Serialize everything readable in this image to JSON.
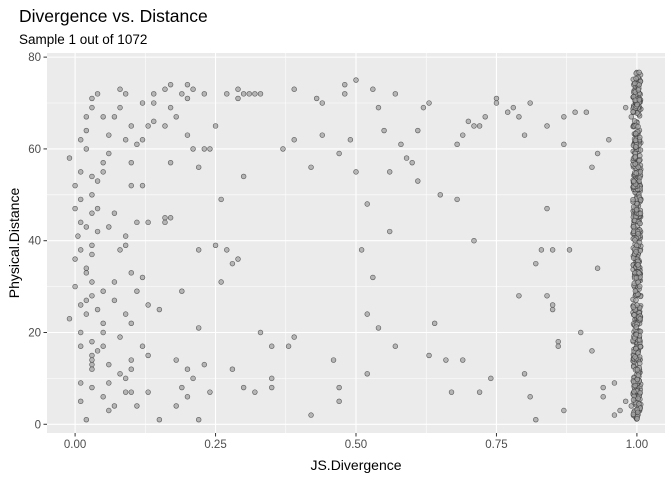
{
  "chart_data": {
    "type": "scatter",
    "title": "Divergence vs. Distance",
    "subtitle": "Sample 1 out of 1072",
    "xlabel": "JS.Divergence",
    "ylabel": "Physical.Distance",
    "xlim": [
      -0.05,
      1.05
    ],
    "ylim": [
      -1.9,
      80.9
    ],
    "xticks": [
      0,
      0.25,
      0.5,
      0.75,
      1
    ],
    "xtick_labels": [
      "0.00",
      "0.25",
      "0.50",
      "0.75",
      "1.00"
    ],
    "yticks": [
      0,
      20,
      40,
      60,
      80
    ],
    "ytick_labels": [
      "0",
      "20",
      "40",
      "60",
      "80"
    ],
    "grid": true,
    "point_color": "#333333",
    "point_fill": "#a3a3a3",
    "panel_background": "#ebebeb",
    "gridline_color": "#ffffff",
    "cluster_note": "About 600 points are stacked at JS.Divergence = 1.00 across the full distance range 1 to 77.",
    "points": [
      [
        -0.01,
        58
      ],
      [
        -0.01,
        23
      ],
      [
        0.0,
        52
      ],
      [
        0.0,
        47
      ],
      [
        0.0,
        36
      ],
      [
        0.0,
        30
      ],
      [
        0.01,
        62
      ],
      [
        0.01,
        55
      ],
      [
        0.01,
        49
      ],
      [
        0.01,
        44
      ],
      [
        0.005,
        41
      ],
      [
        0.01,
        38
      ],
      [
        0.01,
        26
      ],
      [
        0.01,
        9
      ],
      [
        0.01,
        5
      ],
      [
        0.01,
        17
      ],
      [
        0.01,
        20
      ],
      [
        0.02,
        67
      ],
      [
        0.02,
        64
      ],
      [
        0.02,
        60
      ],
      [
        0.02,
        43
      ],
      [
        0.02,
        34
      ],
      [
        0.02,
        33
      ],
      [
        0.02,
        27
      ],
      [
        0.02,
        24
      ],
      [
        0.02,
        1
      ],
      [
        0.03,
        71
      ],
      [
        0.03,
        69
      ],
      [
        0.03,
        54
      ],
      [
        0.03,
        50
      ],
      [
        0.03,
        46
      ],
      [
        0.03,
        39
      ],
      [
        0.03,
        37
      ],
      [
        0.03,
        31
      ],
      [
        0.03,
        28
      ],
      [
        0.03,
        18
      ],
      [
        0.03,
        15
      ],
      [
        0.03,
        14
      ],
      [
        0.03,
        13
      ],
      [
        0.03,
        12
      ],
      [
        0.03,
        8
      ],
      [
        0.04,
        72
      ],
      [
        0.04,
        53
      ],
      [
        0.04,
        47
      ],
      [
        0.04,
        42
      ],
      [
        0.04,
        25
      ],
      [
        0.04,
        16
      ],
      [
        0.05,
        67
      ],
      [
        0.05,
        57
      ],
      [
        0.05,
        55
      ],
      [
        0.05,
        29
      ],
      [
        0.05,
        22
      ],
      [
        0.05,
        20
      ],
      [
        0.05,
        17
      ],
      [
        0.05,
        6
      ],
      [
        0.06,
        63
      ],
      [
        0.06,
        59
      ],
      [
        0.06,
        43
      ],
      [
        0.06,
        13
      ],
      [
        0.06,
        9
      ],
      [
        0.06,
        3
      ],
      [
        0.07,
        67
      ],
      [
        0.07,
        46
      ],
      [
        0.07,
        31
      ],
      [
        0.07,
        27
      ],
      [
        0.07,
        4
      ],
      [
        0.08,
        73
      ],
      [
        0.08,
        69
      ],
      [
        0.08,
        38
      ],
      [
        0.08,
        19
      ],
      [
        0.08,
        11
      ],
      [
        0.09,
        72
      ],
      [
        0.09,
        62
      ],
      [
        0.09,
        41
      ],
      [
        0.09,
        39
      ],
      [
        0.09,
        24
      ],
      [
        0.09,
        10
      ],
      [
        0.09,
        7
      ],
      [
        0.1,
        65
      ],
      [
        0.1,
        57
      ],
      [
        0.1,
        52
      ],
      [
        0.1,
        33
      ],
      [
        0.1,
        22
      ],
      [
        0.1,
        14
      ],
      [
        0.1,
        12
      ],
      [
        0.1,
        7
      ],
      [
        0.11,
        61
      ],
      [
        0.11,
        44
      ],
      [
        0.11,
        29
      ],
      [
        0.11,
        4
      ],
      [
        0.12,
        70
      ],
      [
        0.12,
        62
      ],
      [
        0.12,
        52
      ],
      [
        0.12,
        32
      ],
      [
        0.12,
        17
      ],
      [
        0.13,
        65
      ],
      [
        0.13,
        44
      ],
      [
        0.13,
        26
      ],
      [
        0.13,
        15
      ],
      [
        0.13,
        7
      ],
      [
        0.14,
        72
      ],
      [
        0.14,
        70
      ],
      [
        0.14,
        66
      ],
      [
        0.15,
        25
      ],
      [
        0.15,
        1
      ],
      [
        0.16,
        73
      ],
      [
        0.16,
        65
      ],
      [
        0.16,
        45
      ],
      [
        0.16,
        44
      ],
      [
        0.17,
        74
      ],
      [
        0.17,
        69
      ],
      [
        0.17,
        57
      ],
      [
        0.17,
        45
      ],
      [
        0.18,
        67
      ],
      [
        0.18,
        14
      ],
      [
        0.18,
        4
      ],
      [
        0.19,
        72
      ],
      [
        0.19,
        29
      ],
      [
        0.19,
        8
      ],
      [
        0.2,
        74
      ],
      [
        0.2,
        71
      ],
      [
        0.2,
        63
      ],
      [
        0.2,
        12
      ],
      [
        0.2,
        6
      ],
      [
        0.21,
        73
      ],
      [
        0.21,
        60
      ],
      [
        0.21,
        10
      ],
      [
        0.22,
        56
      ],
      [
        0.22,
        38
      ],
      [
        0.22,
        21
      ],
      [
        0.22,
        1
      ],
      [
        0.23,
        72
      ],
      [
        0.23,
        60
      ],
      [
        0.23,
        13
      ],
      [
        0.24,
        60
      ],
      [
        0.24,
        7
      ],
      [
        0.25,
        65
      ],
      [
        0.25,
        39
      ],
      [
        0.26,
        49
      ],
      [
        0.26,
        31
      ],
      [
        0.27,
        72
      ],
      [
        0.27,
        38
      ],
      [
        0.28,
        35
      ],
      [
        0.28,
        12
      ],
      [
        0.29,
        73
      ],
      [
        0.29,
        71
      ],
      [
        0.29,
        36
      ],
      [
        0.3,
        72
      ],
      [
        0.3,
        54
      ],
      [
        0.3,
        8
      ],
      [
        0.31,
        72
      ],
      [
        0.32,
        72
      ],
      [
        0.32,
        7
      ],
      [
        0.33,
        20
      ],
      [
        0.33,
        72
      ],
      [
        0.35,
        17
      ],
      [
        0.35,
        10
      ],
      [
        0.35,
        8
      ],
      [
        0.37,
        60
      ],
      [
        0.38,
        17
      ],
      [
        0.39,
        62
      ],
      [
        0.39,
        73
      ],
      [
        0.39,
        19
      ],
      [
        0.42,
        56
      ],
      [
        0.42,
        2
      ],
      [
        0.43,
        71
      ],
      [
        0.44,
        70
      ],
      [
        0.44,
        63
      ],
      [
        0.46,
        14
      ],
      [
        0.47,
        59
      ],
      [
        0.47,
        8
      ],
      [
        0.47,
        5
      ],
      [
        0.48,
        72
      ],
      [
        0.48,
        74
      ],
      [
        0.49,
        62
      ],
      [
        0.5,
        75
      ],
      [
        0.5,
        55
      ],
      [
        0.51,
        38
      ],
      [
        0.52,
        48
      ],
      [
        0.52,
        24
      ],
      [
        0.52,
        11
      ],
      [
        0.53,
        73
      ],
      [
        0.53,
        32
      ],
      [
        0.54,
        69
      ],
      [
        0.54,
        21
      ],
      [
        0.55,
        64
      ],
      [
        0.56,
        55
      ],
      [
        0.56,
        42
      ],
      [
        0.57,
        72
      ],
      [
        0.57,
        17
      ],
      [
        0.58,
        61
      ],
      [
        0.59,
        58
      ],
      [
        0.6,
        57
      ],
      [
        0.61,
        64
      ],
      [
        0.61,
        53
      ],
      [
        0.62,
        69
      ],
      [
        0.63,
        70
      ],
      [
        0.63,
        15
      ],
      [
        0.64,
        22
      ],
      [
        0.65,
        50
      ],
      [
        0.66,
        14
      ],
      [
        0.67,
        7
      ],
      [
        0.68,
        61
      ],
      [
        0.68,
        49
      ],
      [
        0.69,
        63
      ],
      [
        0.69,
        14
      ],
      [
        0.7,
        66
      ],
      [
        0.71,
        65
      ],
      [
        0.71,
        40
      ],
      [
        0.72,
        65
      ],
      [
        0.72,
        7
      ],
      [
        0.73,
        67
      ],
      [
        0.74,
        10
      ],
      [
        0.75,
        70
      ],
      [
        0.75,
        71
      ],
      [
        0.77,
        68
      ],
      [
        0.78,
        69
      ],
      [
        0.79,
        67
      ],
      [
        0.79,
        28
      ],
      [
        0.8,
        63
      ],
      [
        0.8,
        11
      ],
      [
        0.81,
        70
      ],
      [
        0.81,
        6
      ],
      [
        0.82,
        1
      ],
      [
        0.82,
        35
      ],
      [
        0.83,
        38
      ],
      [
        0.84,
        65
      ],
      [
        0.84,
        47
      ],
      [
        0.84,
        28
      ],
      [
        0.85,
        38
      ],
      [
        0.85,
        26
      ],
      [
        0.85,
        25
      ],
      [
        0.86,
        18
      ],
      [
        0.86,
        17
      ],
      [
        0.87,
        67
      ],
      [
        0.87,
        61
      ],
      [
        0.87,
        3
      ],
      [
        0.88,
        38
      ],
      [
        0.89,
        68
      ],
      [
        0.9,
        20
      ],
      [
        0.91,
        68
      ],
      [
        0.92,
        56
      ],
      [
        0.92,
        16
      ],
      [
        0.93,
        59
      ],
      [
        0.93,
        34
      ],
      [
        0.94,
        8
      ],
      [
        0.94,
        6
      ],
      [
        0.95,
        62
      ],
      [
        0.96,
        9
      ],
      [
        0.96,
        2
      ],
      [
        0.97,
        3
      ],
      [
        0.98,
        69
      ],
      [
        0.99,
        4
      ],
      [
        0.99,
        67
      ],
      [
        0.98,
        5
      ]
    ]
  }
}
